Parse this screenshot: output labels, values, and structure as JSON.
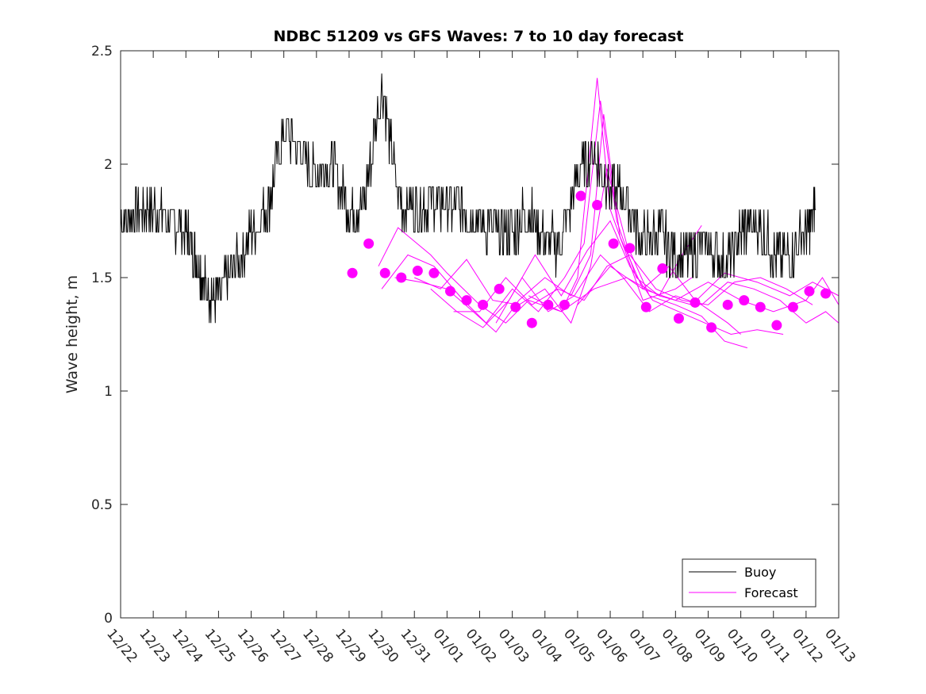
{
  "chart_data": {
    "type": "line",
    "title": "NDBC 51209 vs GFS Waves: 7 to 10 day forecast",
    "xlabel": "",
    "ylabel": "Wave height, m",
    "x_range_days": [
      0,
      22
    ],
    "ylim": [
      0,
      2.5
    ],
    "y_ticks": [
      0,
      0.5,
      1,
      1.5,
      2,
      2.5
    ],
    "y_tick_labels": [
      "0",
      "0.5",
      "1",
      "1.5",
      "2",
      "2.5"
    ],
    "x_tick_labels": [
      "12/22",
      "12/23",
      "12/24",
      "12/25",
      "12/26",
      "12/27",
      "12/28",
      "12/29",
      "12/30",
      "12/31",
      "01/01",
      "01/02",
      "01/03",
      "01/04",
      "01/05",
      "01/06",
      "01/07",
      "01/08",
      "01/09",
      "01/10",
      "01/11",
      "01/12",
      "01/13"
    ],
    "grid": false,
    "legend": {
      "position": "bottom-right",
      "entries": [
        "Buoy",
        "Forecast"
      ]
    },
    "colors": {
      "buoy": "#000000",
      "forecast": "#ff00ff",
      "axis": "#262626"
    },
    "series": [
      {
        "name": "Buoy",
        "x": [
          0,
          0.5,
          1,
          1.5,
          2,
          2.3,
          2.6,
          3,
          3.5,
          4,
          4.5,
          5,
          5.5,
          6,
          6.5,
          7,
          7.5,
          8,
          8.5,
          9,
          9.5,
          10,
          10.5,
          11,
          11.5,
          12,
          12.5,
          13,
          13.5,
          14,
          14.5,
          15,
          15.5,
          16,
          16.5,
          17,
          17.5,
          18,
          18.5,
          19,
          19.5,
          20,
          20.5,
          21,
          21.3
        ],
        "y": [
          1.75,
          1.8,
          1.8,
          1.75,
          1.7,
          1.6,
          1.45,
          1.42,
          1.55,
          1.7,
          1.8,
          2.15,
          2.05,
          1.95,
          2.0,
          1.8,
          1.85,
          2.35,
          1.85,
          1.8,
          1.85,
          1.8,
          1.8,
          1.75,
          1.7,
          1.7,
          1.8,
          1.65,
          1.65,
          1.95,
          2.05,
          1.9,
          1.85,
          1.65,
          1.7,
          1.6,
          1.6,
          1.65,
          1.55,
          1.7,
          1.75,
          1.6,
          1.6,
          1.7,
          1.8
        ]
      },
      {
        "name": "Forecast",
        "points": {
          "x": [
            7.1,
            7.6,
            8.1,
            8.6,
            9.1,
            9.6,
            10.1,
            10.6,
            11.1,
            11.6,
            12.1,
            12.6,
            13.1,
            13.6,
            14.1,
            14.6,
            15.1,
            15.6,
            16.1,
            16.6,
            17.1,
            17.6,
            18.1,
            18.6,
            19.1,
            19.6,
            20.1,
            20.6,
            21.1,
            21.6
          ],
          "y": [
            1.52,
            1.65,
            1.52,
            1.5,
            1.53,
            1.52,
            1.44,
            1.4,
            1.38,
            1.45,
            1.37,
            1.3,
            1.38,
            1.38,
            1.86,
            1.82,
            1.65,
            1.63,
            1.37,
            1.54,
            1.32,
            1.39,
            1.28,
            1.38,
            1.4,
            1.37,
            1.29,
            1.37,
            1.44,
            1.43
          ]
        },
        "lines": [
          {
            "x": [
              7.9,
              8.5,
              9.5,
              10,
              11,
              11.8,
              12.5,
              13.5,
              14,
              14.6,
              15,
              15.5,
              16,
              17,
              17.5
            ],
            "y": [
              1.55,
              1.72,
              1.6,
              1.52,
              1.38,
              1.3,
              1.4,
              1.35,
              1.5,
              2.38,
              1.8,
              1.6,
              1.4,
              1.45,
              1.5
            ]
          },
          {
            "x": [
              8,
              8.8,
              9.6,
              10.5,
              11.2,
              12,
              12.8,
              13.6,
              14.2,
              14.7,
              15.2,
              15.8,
              16.5,
              17.2,
              17.8
            ],
            "y": [
              1.45,
              1.6,
              1.55,
              1.4,
              1.3,
              1.45,
              1.35,
              1.5,
              1.65,
              2.28,
              1.75,
              1.5,
              1.42,
              1.6,
              1.73
            ]
          },
          {
            "x": [
              8.4,
              9.2,
              10,
              10.8,
              11.5,
              12.2,
              13,
              13.8,
              14.4,
              14.8,
              15.3,
              16,
              16.8,
              17.6,
              18.6,
              19
            ],
            "y": [
              1.5,
              1.48,
              1.45,
              1.35,
              1.26,
              1.4,
              1.5,
              1.42,
              1.6,
              2.22,
              1.68,
              1.45,
              1.55,
              1.4,
              1.3,
              1.25
            ]
          },
          {
            "x": [
              9,
              9.8,
              10.6,
              11.4,
              12.2,
              13,
              13.8,
              14.4,
              14.9,
              15.5,
              16.2,
              17,
              17.8,
              18.5,
              19.2
            ],
            "y": [
              1.5,
              1.45,
              1.58,
              1.4,
              1.38,
              1.45,
              1.3,
              1.55,
              1.98,
              1.65,
              1.42,
              1.38,
              1.33,
              1.22,
              1.19
            ]
          },
          {
            "x": [
              9.5,
              10.3,
              11.1,
              11.9,
              12.7,
              13.5,
              14.3,
              15,
              15.6,
              16.3,
              17.1,
              17.9,
              18.7,
              19.5,
              20.3
            ],
            "y": [
              1.45,
              1.35,
              1.28,
              1.4,
              1.6,
              1.42,
              1.62,
              1.75,
              1.55,
              1.4,
              1.35,
              1.3,
              1.25,
              1.27,
              1.25
            ]
          },
          {
            "x": [
              10.2,
              11,
              11.8,
              12.6,
              13.4,
              14.2,
              14.9,
              15.6,
              16.4,
              17.2,
              18,
              18.8,
              19.6,
              20.4,
              21.2
            ],
            "y": [
              1.35,
              1.35,
              1.5,
              1.38,
              1.45,
              1.4,
              1.55,
              1.6,
              1.45,
              1.4,
              1.38,
              1.48,
              1.5,
              1.45,
              1.38
            ]
          },
          {
            "x": [
              11.5,
              12.3,
              13.1,
              13.9,
              14.7,
              15.4,
              16.2,
              17,
              17.8,
              18.6,
              19.4,
              20.2,
              21,
              21.6,
              22
            ],
            "y": [
              1.3,
              1.5,
              1.35,
              1.42,
              1.6,
              1.5,
              1.35,
              1.42,
              1.38,
              1.48,
              1.45,
              1.4,
              1.3,
              1.35,
              1.3
            ]
          },
          {
            "x": [
              12.5,
              13.5,
              14.5,
              15.5,
              16.5,
              17.5,
              18.5,
              19.5,
              20.5,
              21.2,
              22
            ],
            "y": [
              1.42,
              1.35,
              1.45,
              1.5,
              1.42,
              1.38,
              1.52,
              1.48,
              1.42,
              1.48,
              1.42
            ]
          },
          {
            "x": [
              14,
              15,
              16,
              17,
              18,
              19,
              20,
              21,
              21.5,
              22
            ],
            "y": [
              1.38,
              1.55,
              1.45,
              1.4,
              1.48,
              1.4,
              1.35,
              1.4,
              1.5,
              1.38
            ]
          }
        ]
      }
    ]
  }
}
